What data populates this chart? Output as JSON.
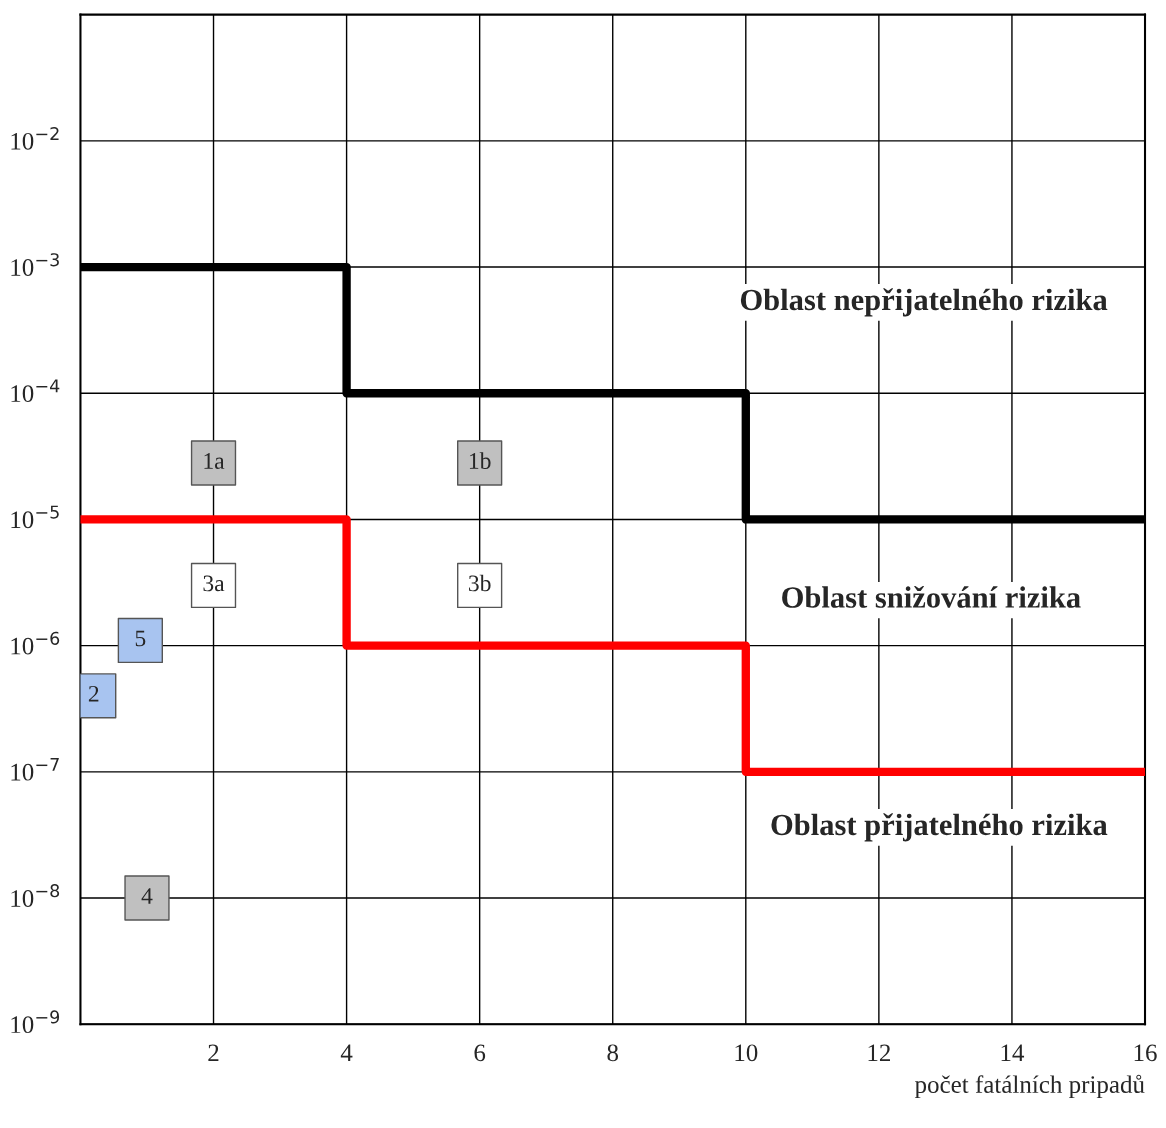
{
  "chart_data": {
    "type": "step",
    "xlabel": "počet fatálních pripadů",
    "xlim": [
      0,
      16
    ],
    "xticks": [
      2,
      4,
      6,
      8,
      10,
      12,
      14,
      16
    ],
    "ylim": [
      1e-09,
      0.1
    ],
    "log": "y",
    "yticks": [
      {
        "value": 1e-09,
        "label": "10$^{−9}$"
      },
      {
        "value": 1e-08,
        "label": "10$^{−8}$"
      },
      {
        "value": 1e-07,
        "label": "10$^{−7}$"
      },
      {
        "value": 1e-06,
        "label": "10$^{−6}$"
      },
      {
        "value": 1e-05,
        "label": "10$^{−5}$"
      },
      {
        "value": 0.0001,
        "label": "10$^{−4}$"
      },
      {
        "value": 0.001,
        "label": "10$^{−3}$"
      },
      {
        "value": 0.01,
        "label": "10$^{−2}$"
      }
    ],
    "grid": true,
    "legend": false,
    "marker": "none",
    "line_style": "solid",
    "series": [
      {
        "color": "#000000",
        "x": [
          0,
          4,
          10,
          16
        ],
        "values": [
          0.001,
          0.0001,
          1e-05,
          1e-05
        ]
      },
      {
        "color": "#ff0000",
        "x": [
          0,
          4,
          10,
          16
        ],
        "values": [
          1e-05,
          1e-06,
          1e-07,
          1e-07
        ]
      },
      {
        "type": "scatter",
        "marker": "square",
        "name": "1a",
        "color": "#c0c0c0",
        "x": [
          2
        ],
        "values": [
          2.8e-05
        ]
      },
      {
        "type": "scatter",
        "marker": "square",
        "name": "1b",
        "color": "#c0c0c0",
        "x": [
          6
        ],
        "values": [
          2.8e-05
        ]
      },
      {
        "type": "scatter",
        "marker": "square",
        "name": "3a",
        "color": "#ffffff",
        "x": [
          2
        ],
        "values": [
          3e-06
        ]
      },
      {
        "type": "scatter",
        "marker": "square",
        "name": "3b",
        "color": "#ffffff",
        "x": [
          6
        ],
        "values": [
          3e-06
        ]
      },
      {
        "type": "scatter",
        "marker": "square",
        "name": "5",
        "color": "#a8c4f0",
        "x": [
          0.9
        ],
        "values": [
          1.1e-06
        ]
      },
      {
        "type": "scatter",
        "marker": "square",
        "name": "2",
        "color": "#a8c4f0",
        "x": [
          0.2
        ],
        "values": [
          4e-07
        ]
      },
      {
        "type": "scatter",
        "marker": "square",
        "name": "4",
        "color": "#c0c0c0",
        "x": [
          1
        ],
        "values": [
          1e-08
        ]
      }
    ],
    "annotations": [
      "Oblast nepřijatelného rizika",
      "Oblast snižování rizika",
      "Oblast přijatelného rizika"
    ]
  }
}
